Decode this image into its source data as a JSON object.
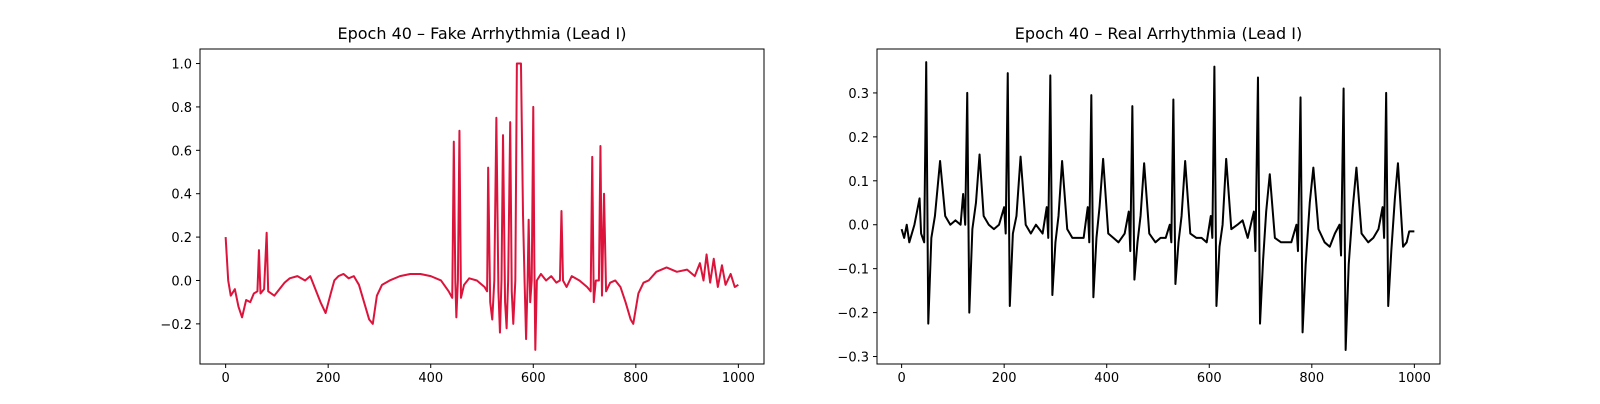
{
  "chart_data": [
    {
      "type": "line",
      "title": "Epoch 40 – Fake Arrhythmia (Lead I)",
      "color": "#dc143c",
      "xlim": [
        -50,
        1050
      ],
      "ylim": [
        -0.385,
        1.067
      ],
      "xticks": [
        0,
        200,
        400,
        600,
        800,
        1000
      ],
      "yticks": [
        {
          "value": -0.2,
          "label": "−0.2"
        },
        {
          "value": 0,
          "label": "0.0"
        },
        0.2,
        0.4,
        0.6,
        0.8,
        {
          "value": 1,
          "label": "1.0"
        }
      ],
      "x": [
        0,
        5,
        10,
        18,
        25,
        32,
        40,
        48,
        55,
        62,
        65,
        68,
        75,
        80,
        83,
        95,
        105,
        115,
        125,
        140,
        155,
        165,
        175,
        185,
        195,
        205,
        212,
        220,
        230,
        240,
        250,
        260,
        270,
        280,
        287,
        295,
        305,
        320,
        340,
        360,
        380,
        400,
        420,
        435,
        442,
        445,
        448,
        450,
        453,
        456,
        459,
        465,
        475,
        490,
        505,
        510,
        512,
        516,
        520,
        524,
        528,
        532,
        535,
        538,
        541,
        545,
        548,
        551,
        555,
        558,
        561,
        565,
        568,
        576,
        580,
        583,
        586,
        589,
        591,
        594,
        597,
        600,
        602,
        604,
        607,
        615,
        625,
        635,
        645,
        652,
        655,
        658,
        665,
        675,
        690,
        705,
        712,
        715,
        718,
        722,
        728,
        731,
        734,
        738,
        742,
        750,
        760,
        770,
        780,
        790,
        795,
        805,
        815,
        825,
        840,
        860,
        880,
        900,
        915,
        925,
        932,
        938,
        945,
        952,
        960,
        968,
        975,
        985,
        993,
        1000
      ],
      "values": [
        0.2,
        0.0,
        -0.07,
        -0.04,
        -0.12,
        -0.17,
        -0.09,
        -0.1,
        -0.06,
        -0.05,
        0.14,
        -0.06,
        -0.04,
        0.22,
        -0.05,
        -0.07,
        -0.04,
        -0.01,
        0.01,
        0.02,
        0.0,
        0.02,
        -0.04,
        -0.1,
        -0.15,
        -0.06,
        0.0,
        0.02,
        0.03,
        0.01,
        0.02,
        -0.02,
        -0.1,
        -0.18,
        -0.2,
        -0.07,
        -0.02,
        0.0,
        0.02,
        0.03,
        0.03,
        0.02,
        0.0,
        -0.05,
        -0.08,
        0.64,
        -0.01,
        -0.17,
        0.0,
        0.69,
        -0.08,
        -0.02,
        0.01,
        0.0,
        -0.03,
        -0.05,
        0.52,
        -0.1,
        -0.18,
        0.0,
        0.75,
        -0.05,
        -0.24,
        0.0,
        0.67,
        -0.1,
        -0.22,
        0.0,
        0.73,
        -0.05,
        -0.2,
        0.0,
        1.0,
        1.0,
        0.3,
        0.0,
        -0.27,
        0.0,
        0.28,
        -0.1,
        0.0,
        0.8,
        0.1,
        -0.32,
        0.0,
        0.03,
        0.0,
        0.02,
        -0.01,
        0.0,
        0.32,
        0.0,
        -0.03,
        0.02,
        0.0,
        -0.03,
        -0.05,
        0.57,
        -0.1,
        0.0,
        0.0,
        0.62,
        -0.07,
        0.4,
        -0.05,
        -0.01,
        0.0,
        -0.03,
        -0.1,
        -0.18,
        -0.2,
        -0.06,
        -0.01,
        0.0,
        0.04,
        0.06,
        0.04,
        0.05,
        0.02,
        0.08,
        0.0,
        0.12,
        -0.01,
        0.1,
        -0.03,
        0.07,
        -0.02,
        0.03,
        -0.03,
        -0.02
      ]
    },
    {
      "type": "line",
      "title": "Epoch 40 – Real Arrhythmia (Lead I)",
      "color": "#000000",
      "xlim": [
        -48,
        1050
      ],
      "ylim": [
        -0.317,
        0.4
      ],
      "xticks": [
        0,
        200,
        400,
        600,
        800,
        1000
      ],
      "yticks": [
        {
          "value": -0.3,
          "label": "−0.3"
        },
        {
          "value": -0.2,
          "label": "−0.2"
        },
        {
          "value": -0.1,
          "label": "−0.1"
        },
        {
          "value": 0,
          "label": "0.0"
        },
        0.1,
        0.2,
        0.3
      ],
      "x": [
        0,
        5,
        10,
        15,
        25,
        35,
        38,
        44,
        48,
        52,
        58,
        65,
        75,
        85,
        95,
        105,
        115,
        120,
        124,
        128,
        132,
        138,
        145,
        152,
        160,
        170,
        180,
        190,
        200,
        203,
        207,
        211,
        217,
        224,
        232,
        242,
        252,
        262,
        275,
        283,
        286,
        290,
        294,
        300,
        306,
        313,
        323,
        333,
        343,
        355,
        363,
        366,
        370,
        374,
        380,
        386,
        393,
        403,
        413,
        423,
        435,
        443,
        446,
        450,
        454,
        460,
        466,
        473,
        483,
        495,
        505,
        515,
        523,
        526,
        530,
        534,
        540,
        546,
        553,
        563,
        575,
        585,
        595,
        603,
        606,
        610,
        614,
        620,
        626,
        633,
        643,
        655,
        665,
        675,
        687,
        690,
        695,
        699,
        705,
        711,
        718,
        728,
        740,
        750,
        760,
        770,
        773,
        778,
        782,
        788,
        796,
        803,
        813,
        825,
        835,
        845,
        854,
        857,
        862,
        866,
        872,
        880,
        887,
        897,
        910,
        920,
        930,
        938,
        941,
        945,
        949,
        955,
        962,
        968,
        978,
        985,
        990,
        1000
      ],
      "values": [
        -0.01,
        -0.03,
        0.0,
        -0.04,
        0.0,
        0.06,
        -0.02,
        -0.04,
        0.37,
        -0.225,
        -0.03,
        0.02,
        0.145,
        0.02,
        0.0,
        0.01,
        0.0,
        0.07,
        0.0,
        0.3,
        -0.2,
        -0.01,
        0.05,
        0.16,
        0.02,
        0.0,
        -0.01,
        0.0,
        0.04,
        -0.02,
        0.345,
        -0.185,
        -0.02,
        0.02,
        0.155,
        0.0,
        -0.02,
        0.0,
        -0.02,
        0.04,
        -0.03,
        0.34,
        -0.16,
        -0.04,
        0.02,
        0.145,
        -0.01,
        -0.03,
        -0.03,
        -0.03,
        0.04,
        -0.04,
        0.295,
        -0.165,
        -0.03,
        0.04,
        0.15,
        -0.02,
        -0.03,
        -0.04,
        -0.02,
        0.03,
        -0.06,
        0.27,
        -0.125,
        -0.04,
        0.02,
        0.14,
        -0.02,
        -0.04,
        -0.03,
        -0.03,
        0.0,
        -0.04,
        0.285,
        -0.135,
        -0.04,
        0.02,
        0.145,
        -0.02,
        -0.03,
        -0.03,
        -0.04,
        0.02,
        -0.03,
        0.36,
        -0.185,
        -0.05,
        0.0,
        0.15,
        -0.01,
        0.0,
        0.01,
        -0.03,
        0.03,
        -0.06,
        0.335,
        -0.225,
        -0.08,
        0.03,
        0.115,
        -0.03,
        -0.04,
        -0.04,
        -0.04,
        0.0,
        -0.06,
        0.29,
        -0.245,
        -0.09,
        0.05,
        0.13,
        -0.01,
        -0.04,
        -0.05,
        -0.02,
        0.0,
        -0.07,
        0.31,
        -0.285,
        -0.09,
        0.04,
        0.13,
        -0.02,
        -0.04,
        -0.03,
        -0.01,
        0.04,
        -0.03,
        0.3,
        -0.185,
        -0.06,
        0.06,
        0.14,
        -0.05,
        -0.04,
        -0.015,
        -0.015
      ]
    }
  ]
}
